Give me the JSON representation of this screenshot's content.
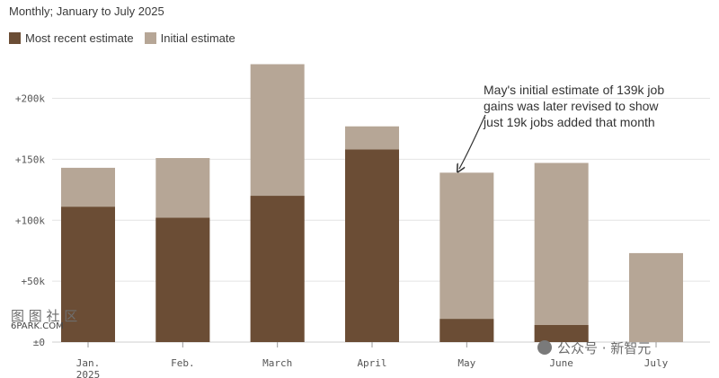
{
  "subtitle": "Monthly; January to July 2025",
  "legend": {
    "recent": "Most recent estimate",
    "initial": "Initial estimate"
  },
  "colors": {
    "recent": "#6b4d35",
    "initial": "#b6a696",
    "grid": "#e4e4e4"
  },
  "annotation": [
    "May's initial estimate of 139k job",
    "gains was later revised to show",
    "just 19k jobs added that month"
  ],
  "watermarks": {
    "left_top": "图 图 社 区",
    "left_bottom": "6PARK.COM",
    "right": "公众号 · 新智元"
  },
  "chart_data": {
    "type": "bar",
    "categories": [
      "Jan.\n2025",
      "Feb.",
      "March",
      "April",
      "May",
      "June",
      "July"
    ],
    "series": [
      {
        "name": "Most recent estimate",
        "values": [
          111,
          102,
          120,
          158,
          19,
          14,
          null
        ]
      },
      {
        "name": "Initial estimate",
        "values": [
          143,
          151,
          228,
          177,
          139,
          147,
          73
        ]
      }
    ],
    "yticks": [
      "±0",
      "+50k",
      "+100k",
      "+150k",
      "+200k"
    ],
    "ylim": [
      0,
      235
    ],
    "grid": true,
    "legend_position": "top-left"
  }
}
